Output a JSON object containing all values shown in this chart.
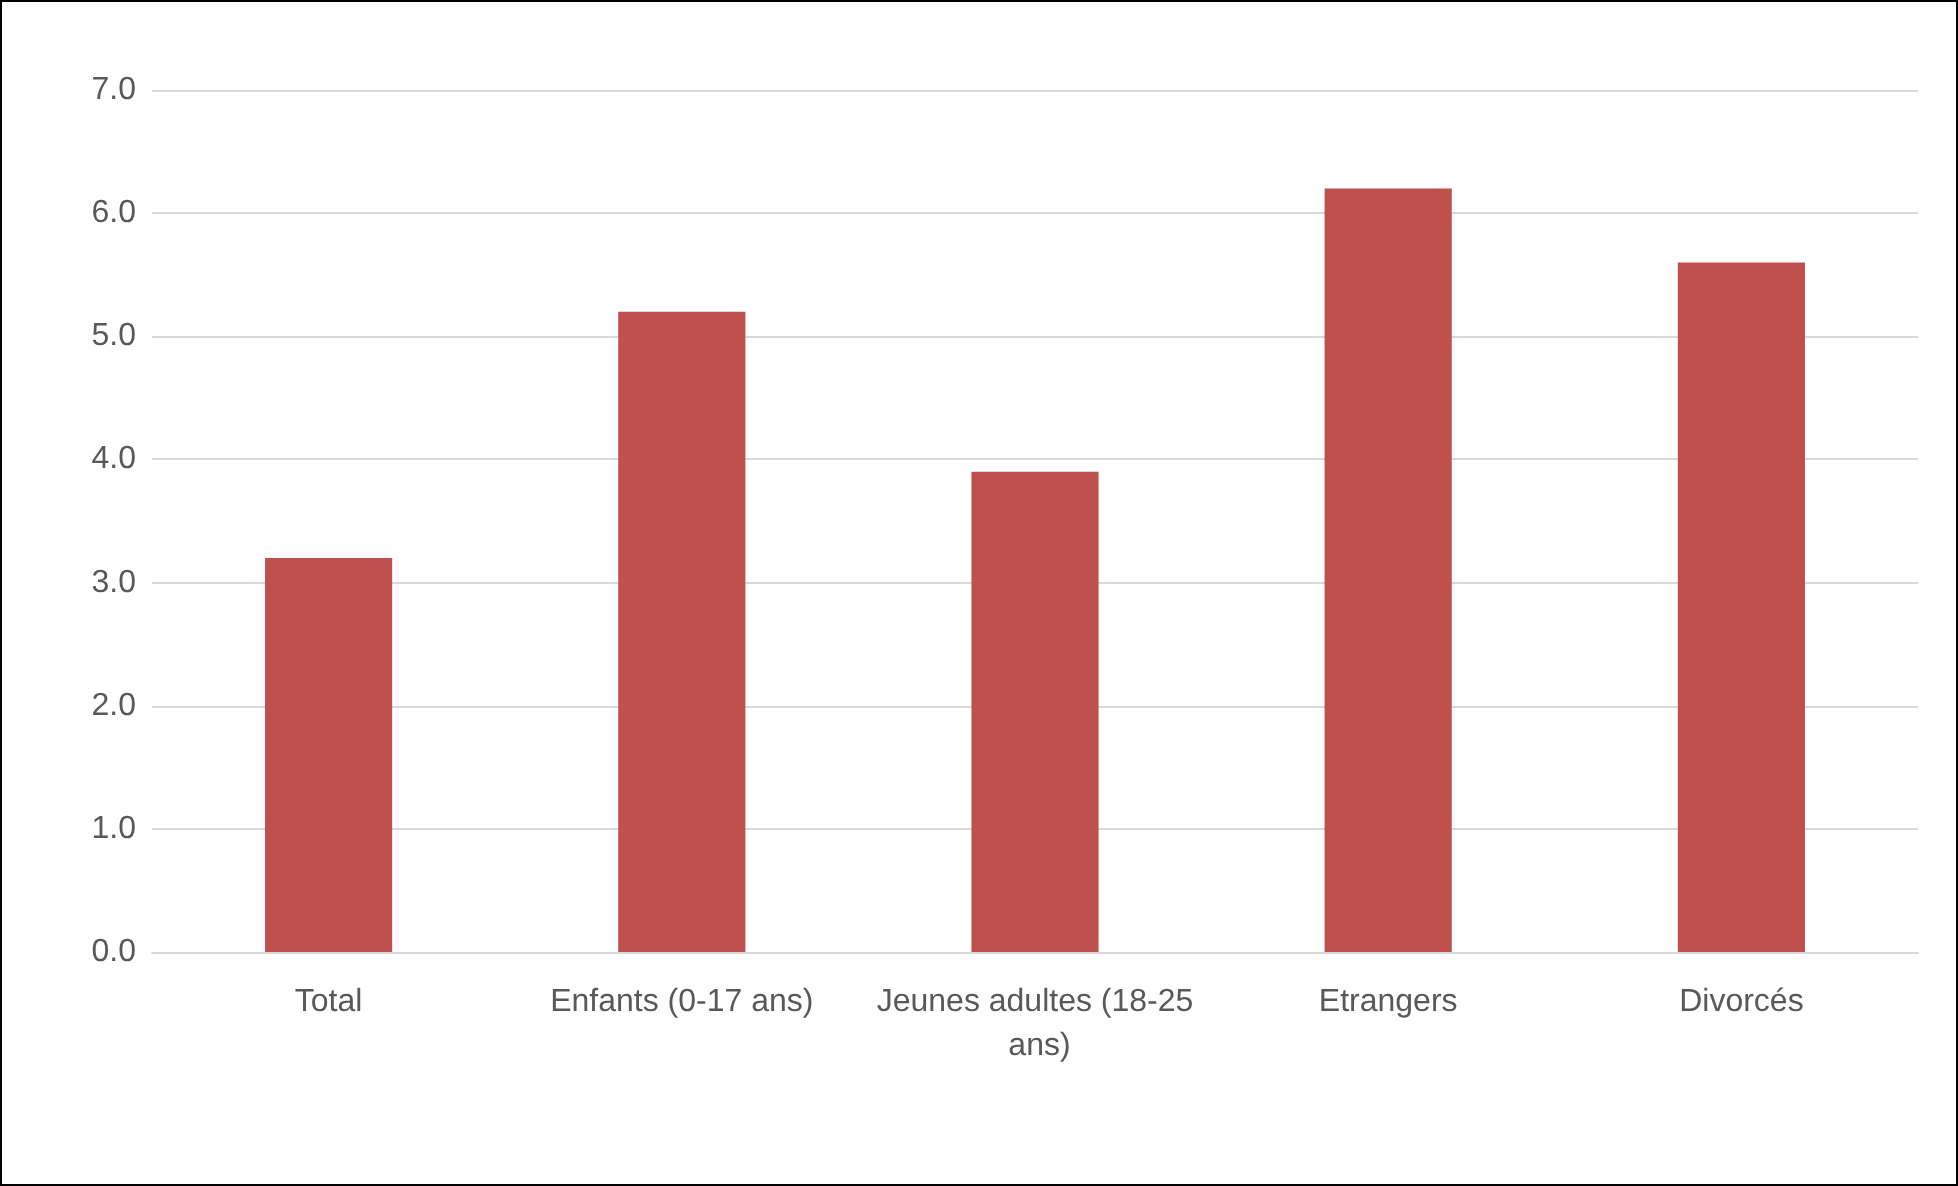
{
  "chart_data": {
    "type": "bar",
    "categories": [
      "Total",
      "Enfants (0-17 ans)",
      "Jeunes adultes (18-25 ans)",
      "Etrangers",
      "Divorcés"
    ],
    "values": [
      3.2,
      5.2,
      3.9,
      6.2,
      5.6
    ],
    "color": "#c0504d",
    "ylim": [
      0,
      7
    ],
    "yticks": [
      {
        "value": 0,
        "label": "0.0"
      },
      {
        "value": 1,
        "label": "1.0"
      },
      {
        "value": 2,
        "label": "2.0"
      },
      {
        "value": 3,
        "label": "3.0"
      },
      {
        "value": 4,
        "label": "4.0"
      },
      {
        "value": 5,
        "label": "5.0"
      },
      {
        "value": 6,
        "label": "6.0"
      },
      {
        "value": 7,
        "label": "7.0"
      }
    ],
    "grid": "y"
  }
}
